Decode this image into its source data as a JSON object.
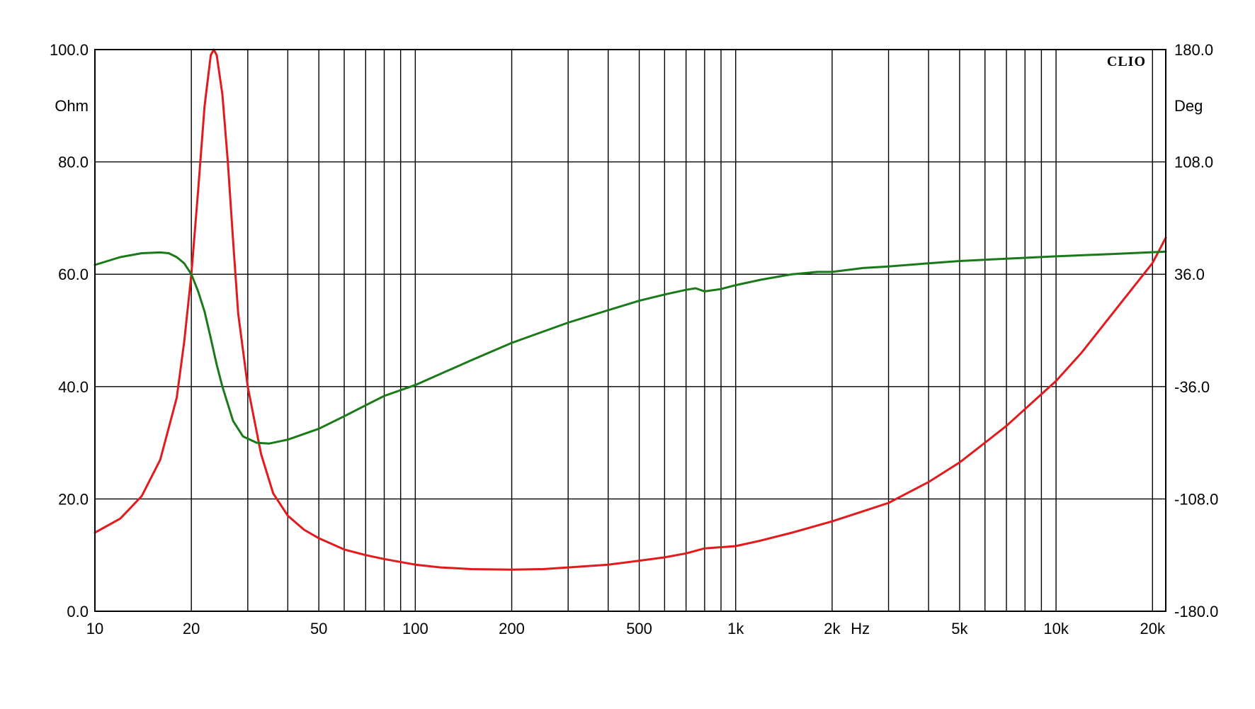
{
  "chart_data": {
    "type": "line",
    "brand": "CLIO",
    "x_unit": "Hz",
    "left_unit": "Ohm",
    "right_unit": "Deg",
    "x_scale": "log",
    "xlim": [
      10,
      22000
    ],
    "ylim_left": [
      0,
      100
    ],
    "ylim_right": [
      -180,
      180
    ],
    "grid": true,
    "x_grid": [
      10,
      20,
      30,
      40,
      50,
      60,
      70,
      80,
      90,
      100,
      200,
      300,
      400,
      500,
      600,
      700,
      800,
      900,
      1000,
      2000,
      3000,
      4000,
      5000,
      6000,
      7000,
      8000,
      9000,
      10000,
      20000
    ],
    "x_ticks": [
      {
        "value": 10,
        "label": "10"
      },
      {
        "value": 20,
        "label": "20"
      },
      {
        "value": 50,
        "label": "50"
      },
      {
        "value": 100,
        "label": "100"
      },
      {
        "value": 200,
        "label": "200"
      },
      {
        "value": 500,
        "label": "500"
      },
      {
        "value": 1000,
        "label": "1k"
      },
      {
        "value": 2000,
        "label": "2k"
      },
      {
        "value": 5000,
        "label": "5k"
      },
      {
        "value": 10000,
        "label": "10k"
      },
      {
        "value": 20000,
        "label": "20k"
      }
    ],
    "y_ticks_left": [
      {
        "value": 0,
        "label": "0.0"
      },
      {
        "value": 20,
        "label": "20.0"
      },
      {
        "value": 40,
        "label": "40.0"
      },
      {
        "value": 60,
        "label": "60.0"
      },
      {
        "value": 80,
        "label": "80.0"
      },
      {
        "value": 100,
        "label": "100.0"
      }
    ],
    "y_ticks_right": [
      {
        "value": -180,
        "label": "-180.0"
      },
      {
        "value": -108,
        "label": "-108.0"
      },
      {
        "value": -36,
        "label": "-36.0"
      },
      {
        "value": 36,
        "label": "36.0"
      },
      {
        "value": 108,
        "label": "108.0"
      },
      {
        "value": 180,
        "label": "180.0"
      }
    ],
    "series": [
      {
        "axis": "left",
        "color": "#e31a1c",
        "points": [
          [
            10,
            14
          ],
          [
            12,
            16.5
          ],
          [
            14,
            20.5
          ],
          [
            16,
            27
          ],
          [
            18,
            38
          ],
          [
            19,
            48
          ],
          [
            20,
            60
          ],
          [
            21,
            75
          ],
          [
            22,
            90
          ],
          [
            23,
            99
          ],
          [
            23.5,
            100
          ],
          [
            24,
            99
          ],
          [
            25,
            92
          ],
          [
            26,
            80
          ],
          [
            27,
            66
          ],
          [
            28,
            53
          ],
          [
            30,
            40
          ],
          [
            33,
            28
          ],
          [
            36,
            21
          ],
          [
            40,
            17
          ],
          [
            45,
            14.5
          ],
          [
            50,
            13
          ],
          [
            60,
            11
          ],
          [
            70,
            10
          ],
          [
            80,
            9.3
          ],
          [
            100,
            8.3
          ],
          [
            120,
            7.8
          ],
          [
            150,
            7.5
          ],
          [
            200,
            7.4
          ],
          [
            250,
            7.5
          ],
          [
            300,
            7.8
          ],
          [
            400,
            8.3
          ],
          [
            500,
            9
          ],
          [
            600,
            9.6
          ],
          [
            700,
            10.3
          ],
          [
            800,
            11.2
          ],
          [
            900,
            11.4
          ],
          [
            1000,
            11.6
          ],
          [
            1200,
            12.6
          ],
          [
            1500,
            14
          ],
          [
            2000,
            16
          ],
          [
            2500,
            17.8
          ],
          [
            3000,
            19.3
          ],
          [
            4000,
            23
          ],
          [
            5000,
            26.5
          ],
          [
            6000,
            30
          ],
          [
            7000,
            33
          ],
          [
            8000,
            36
          ],
          [
            10000,
            41
          ],
          [
            12000,
            46
          ],
          [
            15000,
            53
          ],
          [
            20000,
            62
          ],
          [
            22000,
            66.5
          ]
        ]
      },
      {
        "axis": "right",
        "color": "#1a7a1a",
        "points": [
          [
            10,
            42
          ],
          [
            12,
            47
          ],
          [
            14,
            49.5
          ],
          [
            16,
            50
          ],
          [
            17,
            49.5
          ],
          [
            18,
            47
          ],
          [
            19,
            43
          ],
          [
            20,
            36
          ],
          [
            21,
            25
          ],
          [
            22,
            12
          ],
          [
            23,
            -5
          ],
          [
            24,
            -22
          ],
          [
            25,
            -36
          ],
          [
            27,
            -58
          ],
          [
            29,
            -68
          ],
          [
            32,
            -72
          ],
          [
            35,
            -72.5
          ],
          [
            40,
            -70
          ],
          [
            50,
            -63
          ],
          [
            60,
            -55
          ],
          [
            70,
            -48
          ],
          [
            80,
            -42
          ],
          [
            100,
            -35
          ],
          [
            150,
            -19
          ],
          [
            200,
            -8
          ],
          [
            300,
            5
          ],
          [
            400,
            13
          ],
          [
            500,
            19
          ],
          [
            600,
            23
          ],
          [
            700,
            26
          ],
          [
            750,
            27
          ],
          [
            800,
            25
          ],
          [
            900,
            26.5
          ],
          [
            1000,
            29
          ],
          [
            1200,
            32.5
          ],
          [
            1500,
            36
          ],
          [
            1800,
            37.5
          ],
          [
            2000,
            37.5
          ],
          [
            2500,
            40
          ],
          [
            3000,
            41
          ],
          [
            4000,
            43
          ],
          [
            5000,
            44.5
          ],
          [
            7000,
            46
          ],
          [
            10000,
            47.5
          ],
          [
            15000,
            49
          ],
          [
            22000,
            50.5
          ]
        ]
      }
    ]
  }
}
